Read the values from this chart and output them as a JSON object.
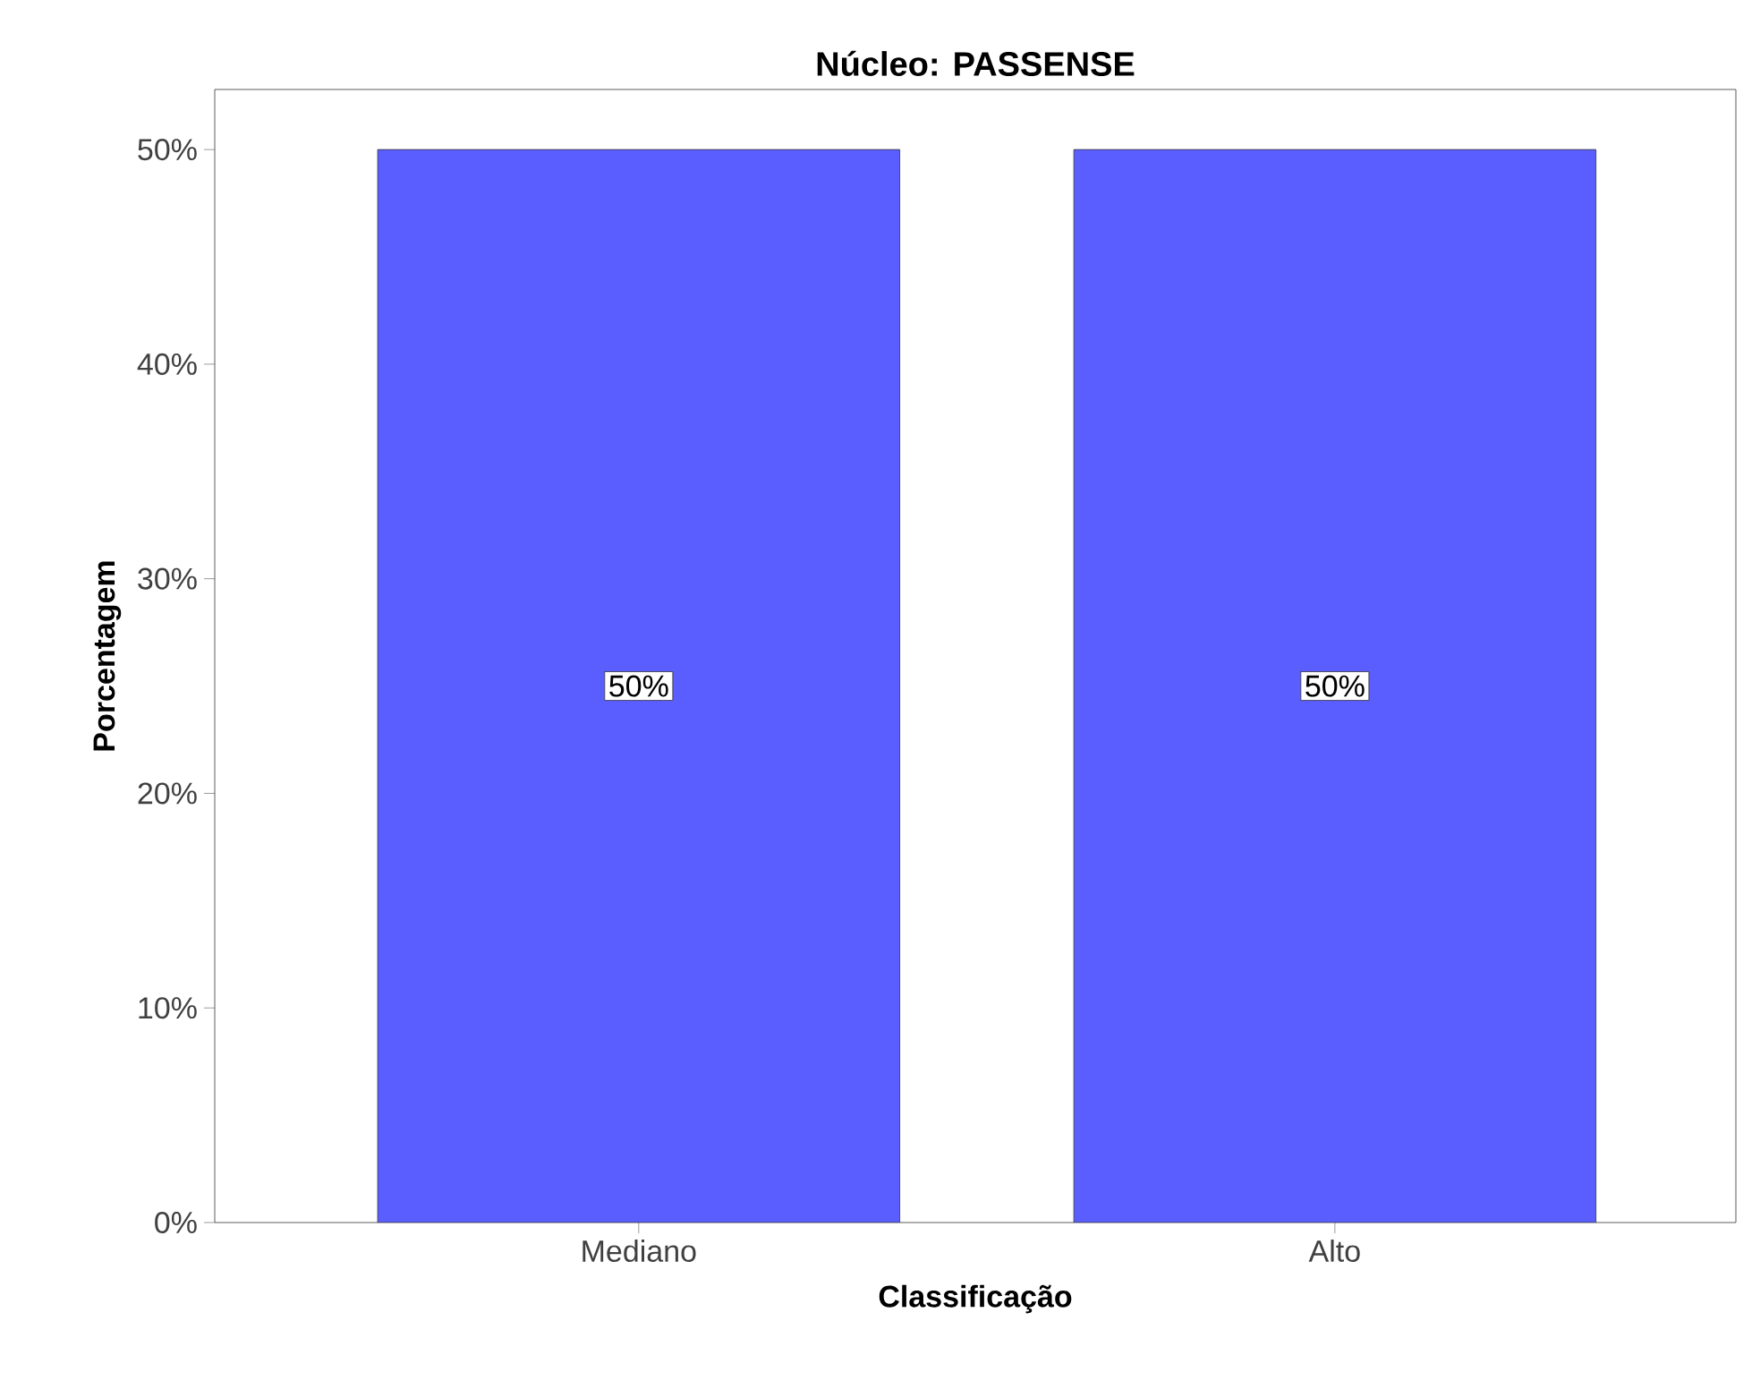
{
  "chart_data": {
    "type": "bar",
    "title": "Núcleo: PASSENSE",
    "xlabel": "Classificação",
    "ylabel": "Porcentagem",
    "categories": [
      "Mediano",
      "Alto"
    ],
    "values": [
      50,
      50
    ],
    "color": "#5a5eff",
    "value_labels": [
      "50%",
      "50%"
    ],
    "ylim": [
      0,
      52.8
    ],
    "yticks": [
      {
        "value": 0,
        "label": "0%"
      },
      {
        "value": 10,
        "label": "10%"
      },
      {
        "value": 20,
        "label": "20%"
      },
      {
        "value": 30,
        "label": "30%"
      },
      {
        "value": 40,
        "label": "40%"
      },
      {
        "value": 50,
        "label": "50%"
      }
    ],
    "grid": false
  }
}
